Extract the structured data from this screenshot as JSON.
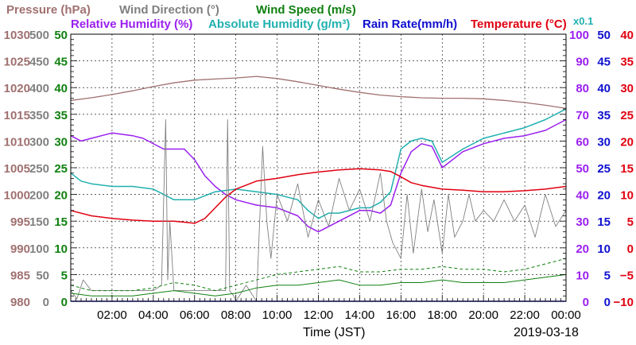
{
  "legend": {
    "row1": [
      {
        "text": "Pressure (hPa)",
        "color": "#a07070"
      },
      {
        "text": "Wind Direction (°)",
        "color": "#808080"
      },
      {
        "text": "Wind Speed (m/s)",
        "color": "#108010"
      }
    ],
    "row2": [
      {
        "text": "Relative Humidity (%)",
        "color": "#9a1ff0"
      },
      {
        "text": "Absolute Humidity (g/m³)",
        "color": "#20b0b0"
      },
      {
        "text": "Rain Rate(mm/h)",
        "color": "#1010d0"
      },
      {
        "text": "Temperature (°C)",
        "color": "#e00010"
      },
      {
        "text": "x0.1",
        "color": "#20b0b0"
      }
    ]
  },
  "colors": {
    "pressure": "#a07070",
    "wind_direction": "#808080",
    "wind_speed": "#108010",
    "relative_humidity": "#9a1ff0",
    "absolute_humidity": "#20b0b0",
    "rain_rate": "#1010d0",
    "temperature": "#e00010"
  },
  "axes": {
    "pressure_ticks": [
      "980",
      "985",
      "990",
      "995",
      "1000",
      "1005",
      "1010",
      "1015",
      "1020",
      "1025",
      "1030"
    ],
    "wind_direction_ticks": [
      "0",
      "50",
      "100",
      "150",
      "200",
      "250",
      "300",
      "350",
      "400",
      "450",
      "500"
    ],
    "wind_speed_ticks": [
      "0",
      "5",
      "10",
      "15",
      "20",
      "25",
      "30",
      "35",
      "40",
      "45",
      "50"
    ],
    "humidity_ticks": [
      "0",
      "10",
      "20",
      "30",
      "40",
      "50",
      "60",
      "70",
      "80",
      "90",
      "100"
    ],
    "rain_ticks": [
      "0",
      "5",
      "10",
      "15",
      "20",
      "25",
      "30",
      "35",
      "40",
      "45",
      "50"
    ],
    "temperature_ticks": [
      "−10",
      "−5",
      "0",
      "5",
      "10",
      "15",
      "20",
      "25",
      "30",
      "35",
      "40"
    ],
    "x_ticks": [
      "02:00",
      "04:00",
      "06:00",
      "08:00",
      "10:00",
      "12:00",
      "14:00",
      "16:00",
      "18:00",
      "20:00",
      "22:00",
      "00:00"
    ],
    "x_label": "Time (JST)",
    "date": "2019-03-18"
  },
  "chart_data": {
    "type": "line",
    "xlabel": "Time (JST)",
    "date": "2019-03-18",
    "x_unit": "hours",
    "xlim": [
      0,
      24
    ],
    "y_axes": [
      {
        "name": "Pressure (hPa)",
        "ylim": [
          980,
          1030
        ]
      },
      {
        "name": "Wind Direction (°)",
        "ylim": [
          0,
          500
        ]
      },
      {
        "name": "Wind Speed (m/s)",
        "ylim": [
          0,
          50
        ]
      },
      {
        "name": "Relative Humidity (%)",
        "ylim": [
          0,
          100
        ]
      },
      {
        "name": "Rain Rate(mm/h)",
        "ylim": [
          0,
          50
        ]
      },
      {
        "name": "Temperature (°C)",
        "ylim": [
          -10,
          40
        ]
      }
    ],
    "grid": true,
    "series": [
      {
        "name": "Pressure (hPa)",
        "axis": 0,
        "x": [
          0,
          1,
          2,
          3,
          4,
          5,
          6,
          7,
          8,
          9,
          10,
          11,
          12,
          13,
          14,
          15,
          16,
          17,
          18,
          19,
          20,
          21,
          22,
          23,
          24
        ],
        "values": [
          1017.6,
          1018.1,
          1018.7,
          1019.4,
          1020.2,
          1020.9,
          1021.4,
          1021.6,
          1021.8,
          1022.1,
          1021.7,
          1021.1,
          1020.4,
          1019.7,
          1019.1,
          1018.6,
          1018.3,
          1018.1,
          1018.0,
          1018.0,
          1017.9,
          1017.6,
          1017.2,
          1016.7,
          1016.1
        ]
      },
      {
        "name": "Relative Humidity (%)",
        "axis": 3,
        "x": [
          0,
          0.5,
          1,
          2,
          3,
          3.5,
          4.5,
          5,
          5.5,
          6,
          6.5,
          7,
          7.5,
          8,
          8.5,
          9,
          10,
          11,
          11.5,
          12,
          12.5,
          13,
          14,
          14.5,
          15,
          15.5,
          16,
          16.5,
          17,
          17.5,
          18,
          19,
          20,
          21,
          22,
          23,
          24
        ],
        "values": [
          62,
          60,
          61,
          63,
          62,
          61,
          57,
          57,
          57,
          53,
          47,
          43,
          40,
          38,
          37,
          36,
          35,
          32,
          28,
          26,
          28,
          30,
          34,
          34,
          33,
          36,
          48,
          56,
          59,
          58,
          50,
          56,
          59,
          61,
          62,
          64,
          68
        ]
      },
      {
        "name": "Absolute Humidity (g/m³) x0.1",
        "axis": 3,
        "x": [
          0,
          0.5,
          1,
          2,
          3,
          4,
          4.5,
          5,
          5.5,
          6,
          7,
          8,
          9,
          10,
          11,
          11.5,
          12,
          12.5,
          13,
          14,
          14.5,
          15,
          15.5,
          16,
          16.5,
          17,
          17.5,
          18,
          19,
          20,
          21,
          22,
          23,
          24
        ],
        "values": [
          48,
          45,
          44,
          43,
          43,
          42,
          40,
          38,
          38,
          38,
          41,
          42,
          41,
          40,
          38,
          34,
          31,
          33,
          33,
          35,
          35,
          37,
          41,
          57,
          60,
          61,
          60,
          52,
          57,
          61,
          63,
          65,
          68,
          72
        ]
      },
      {
        "name": "Temperature (°C)",
        "axis": 5,
        "x": [
          0,
          1,
          2,
          3,
          4,
          5,
          5.5,
          6,
          6.5,
          7,
          7.5,
          8,
          9,
          10,
          11,
          12,
          13,
          14,
          15,
          15.5,
          16,
          16.5,
          17,
          18,
          19,
          20,
          21,
          22,
          23,
          24
        ],
        "values": [
          7.0,
          6.0,
          5.5,
          5.2,
          5.0,
          5.0,
          4.8,
          4.6,
          5.5,
          7.5,
          9.5,
          11.0,
          12.5,
          13.0,
          13.7,
          14.2,
          14.6,
          14.8,
          14.6,
          14.3,
          13.3,
          12.2,
          11.7,
          11.0,
          10.8,
          10.5,
          10.5,
          10.7,
          11.0,
          11.5
        ]
      },
      {
        "name": "Wind Direction (°)",
        "axis": 1,
        "x": [
          0,
          0.3,
          0.6,
          1,
          2,
          3,
          4,
          4.4,
          4.6,
          4.7,
          4.8,
          5,
          6,
          7,
          7.5,
          7.6,
          7.7,
          7.9,
          8,
          8.5,
          9,
          9.3,
          9.5,
          9.7,
          10,
          10.5,
          11,
          11.5,
          12,
          12.5,
          13,
          13.5,
          14,
          14.5,
          15,
          15.3,
          15.6,
          16,
          16.3,
          16.6,
          17,
          17.3,
          17.6,
          18,
          18.3,
          18.6,
          19,
          19.3,
          19.6,
          20,
          20.5,
          21,
          21.5,
          22,
          22.5,
          23,
          23.5,
          24
        ],
        "values": [
          20,
          5,
          40,
          20,
          20,
          20,
          20,
          30,
          340,
          40,
          150,
          20,
          20,
          20,
          20,
          340,
          20,
          10,
          0,
          30,
          0,
          290,
          150,
          80,
          200,
          150,
          220,
          120,
          190,
          140,
          230,
          170,
          210,
          150,
          240,
          150,
          110,
          80,
          200,
          90,
          210,
          130,
          190,
          90,
          200,
          120,
          150,
          200,
          150,
          170,
          150,
          190,
          150,
          180,
          120,
          200,
          140,
          170
        ]
      },
      {
        "name": "Wind Speed (m/s)",
        "axis": 2,
        "x": [
          0,
          1,
          2,
          3,
          4,
          5,
          6,
          7,
          8,
          9,
          10,
          11,
          12,
          13,
          14,
          15,
          16,
          17,
          18,
          19,
          20,
          21,
          22,
          23,
          24
        ],
        "values": [
          1.5,
          1.0,
          1.0,
          1.0,
          1.5,
          2.0,
          1.5,
          1.0,
          1.5,
          2.5,
          3.0,
          3.0,
          3.5,
          4.0,
          3.0,
          3.0,
          3.5,
          3.5,
          4.0,
          3.5,
          3.5,
          3.5,
          4.0,
          4.5,
          5.0
        ]
      },
      {
        "name": "Wind Speed gust (m/s)",
        "axis": 2,
        "x": [
          0,
          1,
          2,
          3,
          4,
          5,
          6,
          7,
          8,
          9,
          10,
          11,
          12,
          13,
          14,
          15,
          16,
          17,
          18,
          19,
          20,
          21,
          22,
          23,
          24
        ],
        "values": [
          3.0,
          2.0,
          2.0,
          2.0,
          2.5,
          3.5,
          3.0,
          2.0,
          3.0,
          4.0,
          5.0,
          5.5,
          6.0,
          6.5,
          5.5,
          5.5,
          6.0,
          6.0,
          6.5,
          6.0,
          6.0,
          5.5,
          6.0,
          7.0,
          8.0
        ]
      },
      {
        "name": "Rain Rate(mm/h)",
        "axis": 4,
        "x": [
          0,
          24
        ],
        "values": [
          0,
          0
        ]
      }
    ]
  }
}
